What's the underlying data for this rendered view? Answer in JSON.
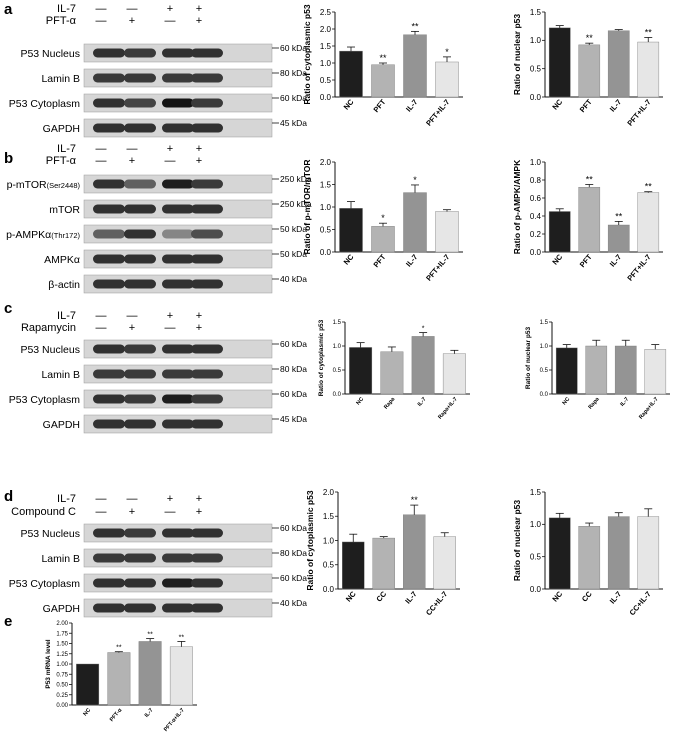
{
  "panels": {
    "a": {
      "label": "a",
      "conditions": [
        {
          "name": "IL-7",
          "signs": [
            "—",
            "—",
            "+",
            "+"
          ]
        },
        {
          "name": "PFT-α",
          "signs": [
            "—",
            "+",
            "—",
            "+"
          ]
        }
      ],
      "blots": [
        {
          "name": "P53 Nucleus",
          "marker": "60 kDa",
          "intensity": [
            0.85,
            0.8,
            0.85,
            0.85
          ]
        },
        {
          "name": "Lamin B",
          "marker": "80 kDa",
          "intensity": [
            0.8,
            0.8,
            0.8,
            0.8
          ]
        },
        {
          "name": "P53 Cytoplasm",
          "marker": "60 kDa",
          "intensity": [
            0.85,
            0.75,
            1.0,
            0.8
          ]
        },
        {
          "name": "GAPDH",
          "marker": "45 kDa",
          "intensity": [
            0.85,
            0.85,
            0.85,
            0.85
          ]
        }
      ]
    },
    "b": {
      "label": "b",
      "conditions": [
        {
          "name": "IL-7",
          "signs": [
            "—",
            "—",
            "+",
            "+"
          ]
        },
        {
          "name": "PFT-α",
          "signs": [
            "—",
            "+",
            "—",
            "+"
          ]
        }
      ],
      "blots": [
        {
          "name": "p-mTOR",
          "name_sub": "(Ser2448)",
          "marker": "250 kDa",
          "intensity": [
            0.85,
            0.6,
            0.95,
            0.8
          ]
        },
        {
          "name": "mTOR",
          "marker": "250 kDa",
          "intensity": [
            0.85,
            0.85,
            0.85,
            0.85
          ]
        },
        {
          "name": "p-AMPKα",
          "name_sub": "(Thr172)",
          "marker": "50 kDa",
          "intensity": [
            0.6,
            0.85,
            0.4,
            0.7
          ]
        },
        {
          "name": "AMPKα",
          "marker": "50 kDa",
          "intensity": [
            0.85,
            0.85,
            0.85,
            0.85
          ]
        },
        {
          "name": "β-actin",
          "marker": "40 kDa",
          "intensity": [
            0.85,
            0.85,
            0.85,
            0.85
          ]
        }
      ]
    },
    "c": {
      "label": "c",
      "conditions": [
        {
          "name": "IL-7",
          "signs": [
            "—",
            "—",
            "+",
            "+"
          ]
        },
        {
          "name": "Rapamycin",
          "signs": [
            "—",
            "+",
            "—",
            "+"
          ]
        }
      ],
      "blots": [
        {
          "name": "P53 Nucleus",
          "marker": "60 kDa",
          "intensity": [
            0.85,
            0.8,
            0.85,
            0.85
          ]
        },
        {
          "name": "Lamin B",
          "marker": "80 kDa",
          "intensity": [
            0.8,
            0.8,
            0.8,
            0.8
          ]
        },
        {
          "name": "P53 Cytoplasm",
          "marker": "60 kDa",
          "intensity": [
            0.85,
            0.8,
            0.95,
            0.8
          ]
        },
        {
          "name": "GAPDH",
          "marker": "45 kDa",
          "intensity": [
            0.85,
            0.85,
            0.85,
            0.85
          ]
        }
      ]
    },
    "d": {
      "label": "d",
      "conditions": [
        {
          "name": "IL-7",
          "signs": [
            "—",
            "—",
            "+",
            "+"
          ]
        },
        {
          "name": "Compound C",
          "signs": [
            "—",
            "+",
            "—",
            "+"
          ]
        }
      ],
      "blots": [
        {
          "name": "P53 Nucleus",
          "marker": "60 kDa",
          "intensity": [
            0.85,
            0.8,
            0.85,
            0.85
          ]
        },
        {
          "name": "Lamin B",
          "marker": "80 kDa",
          "intensity": [
            0.8,
            0.8,
            0.8,
            0.8
          ]
        },
        {
          "name": "P53 Cytoplasm",
          "marker": "60 kDa",
          "intensity": [
            0.85,
            0.85,
            0.95,
            0.85
          ]
        },
        {
          "name": "GAPDH",
          "marker": "40 kDa",
          "intensity": [
            0.85,
            0.85,
            0.85,
            0.85
          ]
        }
      ]
    },
    "e": {
      "label": "e"
    }
  },
  "chart_data": [
    {
      "id": "a1",
      "type": "bar",
      "ylabel": "Ratio of cytoplasmic p53",
      "ylim": [
        0,
        2.5
      ],
      "yticks": [
        "0.0",
        "0.5",
        "1.0",
        "1.5",
        "2.0",
        "2.5"
      ],
      "yticks_values": [
        0,
        0.5,
        1.0,
        1.5,
        2.0,
        2.5
      ],
      "categories": [
        "NC",
        "PFT",
        "IL-7",
        "PFT+IL-7"
      ],
      "values": [
        1.35,
        0.95,
        1.83,
        1.03
      ],
      "errors": [
        0.12,
        0.05,
        0.1,
        0.15
      ],
      "significance": [
        "",
        "**",
        "**",
        "*"
      ]
    },
    {
      "id": "a2",
      "type": "bar",
      "ylabel": "Ratio of nuclear p53",
      "ylim": [
        0,
        1.5
      ],
      "yticks": [
        "0.0",
        "0.5",
        "1.0",
        "1.5"
      ],
      "yticks_values": [
        0,
        0.5,
        1.0,
        1.5
      ],
      "categories": [
        "NC",
        "PFT",
        "IL-7",
        "PFT+IL-7"
      ],
      "values": [
        1.22,
        0.92,
        1.17,
        0.97
      ],
      "errors": [
        0.04,
        0.03,
        0.02,
        0.08
      ],
      "significance": [
        "",
        "**",
        "",
        "**"
      ]
    },
    {
      "id": "b1",
      "type": "bar",
      "ylabel": "Ratio of p-mTOR/mTOR",
      "ylim": [
        0,
        2.0
      ],
      "yticks": [
        "0.0",
        "0.5",
        "1.0",
        "1.5",
        "2.0"
      ],
      "yticks_values": [
        0,
        0.5,
        1.0,
        1.5,
        2.0
      ],
      "categories": [
        "NC",
        "PFT",
        "IL-7",
        "PFT+IL-7"
      ],
      "values": [
        0.97,
        0.57,
        1.32,
        0.9
      ],
      "errors": [
        0.15,
        0.07,
        0.17,
        0.04
      ],
      "significance": [
        "",
        "*",
        "*",
        ""
      ]
    },
    {
      "id": "b2",
      "type": "bar",
      "ylabel": "Ratio of p-AMPK/AMPK",
      "ylim": [
        0,
        1.0
      ],
      "yticks": [
        "0.0",
        "0.2",
        "0.4",
        "0.6",
        "0.8",
        "1.0"
      ],
      "yticks_values": [
        0,
        0.2,
        0.4,
        0.6,
        0.8,
        1.0
      ],
      "categories": [
        "NC",
        "PFT",
        "IL-7",
        "PFT+IL-7"
      ],
      "values": [
        0.45,
        0.72,
        0.3,
        0.66
      ],
      "errors": [
        0.03,
        0.03,
        0.04,
        0.01
      ],
      "significance": [
        "",
        "**",
        "**",
        "**"
      ]
    },
    {
      "id": "c1",
      "type": "bar",
      "ylabel": "Ratio of cytoplasmic p53",
      "ylim": [
        0,
        1.5
      ],
      "yticks": [
        "0.0",
        "0.5",
        "1.0",
        "1.5"
      ],
      "yticks_values": [
        0,
        0.5,
        1.0,
        1.5
      ],
      "categories": [
        "NC",
        "Rapa",
        "IL-7",
        "Rapa+IL-7"
      ],
      "values": [
        0.97,
        0.88,
        1.2,
        0.84
      ],
      "errors": [
        0.1,
        0.1,
        0.08,
        0.07
      ],
      "significance": [
        "",
        "",
        "*",
        ""
      ]
    },
    {
      "id": "c2",
      "type": "bar",
      "ylabel": "Ratio of nuclear p53",
      "ylim": [
        0,
        1.5
      ],
      "yticks": [
        "0.0",
        "0.5",
        "1.0",
        "1.5"
      ],
      "yticks_values": [
        0,
        0.5,
        1.0,
        1.5
      ],
      "categories": [
        "NC",
        "Rapa",
        "IL-7",
        "Rapa+IL-7"
      ],
      "values": [
        0.96,
        1.0,
        1.0,
        0.93
      ],
      "errors": [
        0.07,
        0.12,
        0.12,
        0.1
      ],
      "significance": [
        "",
        "",
        "",
        ""
      ]
    },
    {
      "id": "d1",
      "type": "bar",
      "ylabel": "Ratio of cytoplasmic p53",
      "ylim": [
        0,
        2.0
      ],
      "yticks": [
        "0.0",
        "0.5",
        "1.0",
        "1.5",
        "2.0"
      ],
      "yticks_values": [
        0,
        0.5,
        1.0,
        1.5,
        2.0
      ],
      "categories": [
        "NC",
        "CC",
        "IL-7",
        "CC+IL-7"
      ],
      "values": [
        0.97,
        1.05,
        1.53,
        1.08
      ],
      "errors": [
        0.16,
        0.03,
        0.2,
        0.08
      ],
      "significance": [
        "",
        "",
        "**",
        ""
      ]
    },
    {
      "id": "d2",
      "type": "bar",
      "ylabel": "Ratio of nuclear p53",
      "ylim": [
        0,
        1.5
      ],
      "yticks": [
        "0.0",
        "0.5",
        "1.0",
        "1.5"
      ],
      "yticks_values": [
        0,
        0.5,
        1.0,
        1.5
      ],
      "categories": [
        "NC",
        "CC",
        "IL-7",
        "CC+IL-7"
      ],
      "values": [
        1.1,
        0.97,
        1.12,
        1.12
      ],
      "errors": [
        0.07,
        0.05,
        0.06,
        0.12
      ],
      "significance": [
        "",
        "",
        "",
        ""
      ]
    },
    {
      "id": "e1",
      "type": "bar",
      "ylabel": "P53 mRNA level",
      "ylim": [
        0,
        2.0
      ],
      "yticks": [
        "0.00",
        "0.25",
        "0.50",
        "0.75",
        "1.00",
        "1.25",
        "1.50",
        "1.75",
        "2.00"
      ],
      "yticks_values": [
        0,
        0.25,
        0.5,
        0.75,
        1.0,
        1.25,
        1.5,
        1.75,
        2.0
      ],
      "categories": [
        "NC",
        "PFT-α",
        "IL-7",
        "PFT-α+IL-7"
      ],
      "values": [
        1.0,
        1.28,
        1.55,
        1.42
      ],
      "errors": [
        0.0,
        0.02,
        0.07,
        0.13
      ],
      "significance": [
        "",
        "**",
        "**",
        "**"
      ]
    }
  ],
  "colors": {
    "bar1": "#1e1e1e",
    "bar2": "#b3b3b3",
    "bar3": "#949494",
    "bar4": "#e6e6e6",
    "axis": "#111111"
  }
}
